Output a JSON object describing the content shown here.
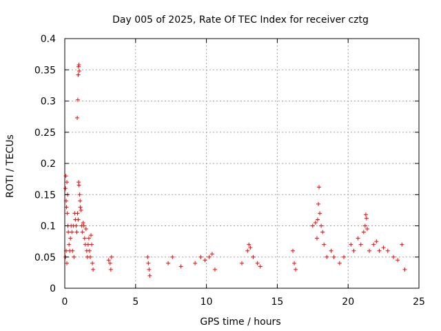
{
  "chart_data": {
    "type": "scatter",
    "title": "Day 005 of 2025, Rate Of TEC Index for receiver cztg",
    "xlabel": "GPS time / hours",
    "ylabel": "ROTI / TECUs",
    "xlim": [
      0,
      25
    ],
    "ylim": [
      0,
      0.4
    ],
    "xticks": [
      0,
      5,
      10,
      15,
      20,
      25
    ],
    "yticks": [
      0,
      0.05,
      0.1,
      0.15,
      0.2,
      0.25,
      0.3,
      0.35,
      0.4
    ],
    "xtick_labels": [
      "0",
      "5",
      "10",
      "15",
      "20",
      "25"
    ],
    "ytick_labels": [
      "0",
      "0.05",
      "0.1",
      "0.15",
      "0.2",
      "0.25",
      "0.3",
      "0.35",
      "0.4"
    ],
    "grid": true,
    "marker": "+",
    "marker_color": "#ff0000",
    "series": [
      {
        "name": "ROTI",
        "points": [
          [
            0.05,
            0.16
          ],
          [
            0.08,
            0.18
          ],
          [
            0.1,
            0.14
          ],
          [
            0.12,
            0.13
          ],
          [
            0.15,
            0.17
          ],
          [
            0.18,
            0.12
          ],
          [
            0.2,
            0.15
          ],
          [
            0.22,
            0.1
          ],
          [
            0.25,
            0.09
          ],
          [
            0.1,
            0.06
          ],
          [
            0.05,
            0.05
          ],
          [
            0.15,
            0.04
          ],
          [
            0.3,
            0.07
          ],
          [
            0.35,
            0.06
          ],
          [
            0.4,
            0.08
          ],
          [
            0.45,
            0.1
          ],
          [
            0.5,
            0.09
          ],
          [
            0.55,
            0.06
          ],
          [
            0.6,
            0.1
          ],
          [
            0.65,
            0.05
          ],
          [
            0.7,
            0.12
          ],
          [
            0.75,
            0.11
          ],
          [
            0.8,
            0.1
          ],
          [
            0.85,
            0.09
          ],
          [
            0.9,
            0.12
          ],
          [
            0.95,
            0.11
          ],
          [
            0.88,
            0.273
          ],
          [
            0.92,
            0.302
          ],
          [
            0.95,
            0.342
          ],
          [
            0.97,
            0.355
          ],
          [
            1.0,
            0.358
          ],
          [
            1.02,
            0.348
          ],
          [
            0.98,
            0.17
          ],
          [
            1.0,
            0.165
          ],
          [
            1.05,
            0.15
          ],
          [
            1.08,
            0.14
          ],
          [
            1.1,
            0.13
          ],
          [
            1.15,
            0.125
          ],
          [
            1.2,
            0.1
          ],
          [
            1.25,
            0.09
          ],
          [
            1.3,
            0.105
          ],
          [
            1.35,
            0.1
          ],
          [
            1.4,
            0.08
          ],
          [
            1.45,
            0.07
          ],
          [
            1.5,
            0.095
          ],
          [
            1.55,
            0.06
          ],
          [
            1.6,
            0.05
          ],
          [
            1.65,
            0.07
          ],
          [
            1.7,
            0.08
          ],
          [
            1.75,
            0.06
          ],
          [
            1.8,
            0.05
          ],
          [
            1.85,
            0.085
          ],
          [
            1.9,
            0.07
          ],
          [
            1.95,
            0.04
          ],
          [
            2.0,
            0.03
          ],
          [
            3.1,
            0.045
          ],
          [
            3.2,
            0.04
          ],
          [
            3.3,
            0.05
          ],
          [
            3.25,
            0.03
          ],
          [
            5.85,
            0.05
          ],
          [
            5.9,
            0.04
          ],
          [
            5.95,
            0.03
          ],
          [
            6.0,
            0.02
          ],
          [
            7.3,
            0.04
          ],
          [
            7.6,
            0.05
          ],
          [
            8.2,
            0.035
          ],
          [
            9.2,
            0.04
          ],
          [
            9.6,
            0.05
          ],
          [
            9.9,
            0.045
          ],
          [
            10.2,
            0.05
          ],
          [
            10.4,
            0.055
          ],
          [
            10.6,
            0.03
          ],
          [
            12.5,
            0.04
          ],
          [
            12.9,
            0.06
          ],
          [
            13.0,
            0.07
          ],
          [
            13.1,
            0.065
          ],
          [
            13.3,
            0.05
          ],
          [
            13.6,
            0.04
          ],
          [
            13.8,
            0.035
          ],
          [
            16.1,
            0.06
          ],
          [
            16.2,
            0.04
          ],
          [
            16.3,
            0.03
          ],
          [
            17.5,
            0.1
          ],
          [
            17.7,
            0.105
          ],
          [
            17.8,
            0.08
          ],
          [
            17.85,
            0.11
          ],
          [
            17.9,
            0.135
          ],
          [
            17.95,
            0.162
          ],
          [
            18.0,
            0.12
          ],
          [
            18.1,
            0.1
          ],
          [
            18.2,
            0.09
          ],
          [
            18.3,
            0.07
          ],
          [
            18.5,
            0.05
          ],
          [
            18.8,
            0.06
          ],
          [
            19.0,
            0.05
          ],
          [
            19.4,
            0.04
          ],
          [
            19.7,
            0.05
          ],
          [
            20.2,
            0.07
          ],
          [
            20.4,
            0.06
          ],
          [
            20.7,
            0.08
          ],
          [
            20.9,
            0.07
          ],
          [
            21.1,
            0.09
          ],
          [
            21.2,
            0.1
          ],
          [
            21.25,
            0.118
          ],
          [
            21.3,
            0.112
          ],
          [
            21.35,
            0.095
          ],
          [
            21.5,
            0.06
          ],
          [
            21.8,
            0.07
          ],
          [
            22.0,
            0.075
          ],
          [
            22.2,
            0.06
          ],
          [
            22.5,
            0.065
          ],
          [
            22.8,
            0.06
          ],
          [
            23.2,
            0.05
          ],
          [
            23.5,
            0.045
          ],
          [
            23.8,
            0.07
          ],
          [
            24.0,
            0.03
          ]
        ]
      }
    ]
  }
}
